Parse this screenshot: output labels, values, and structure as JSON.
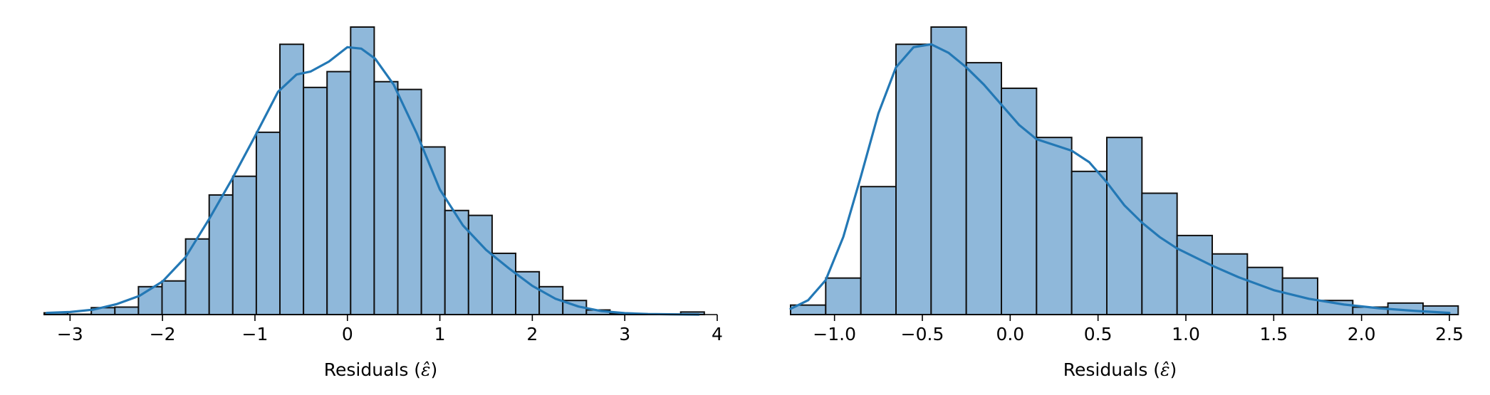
{
  "chart_data": [
    {
      "type": "histogram",
      "xlabel": "Residuals ($\\hat{\\varepsilon}$)",
      "xlabel_text": "Residuals (",
      "xlabel_symbol": "ε̂",
      "xlabel_close": ")",
      "xlim": [
        -3.28,
        4.0
      ],
      "ylim": [
        0,
        1.0
      ],
      "y_axis_visible": false,
      "grid": false,
      "bar_color": "#8fb8da",
      "bar_edge_color": "#111111",
      "kde_color": "#2378b5",
      "xticks": [
        -3,
        -2,
        -1,
        0,
        1,
        2,
        3,
        4
      ],
      "xtick_labels": [
        "−3",
        "−2",
        "−1",
        "0",
        "1",
        "2",
        "3",
        "4"
      ],
      "bins": [
        {
          "x0": -3.28,
          "x1": -3.025,
          "h": 0.006
        },
        {
          "x0": -3.025,
          "x1": -2.77,
          "h": 0.001
        },
        {
          "x0": -2.77,
          "x1": -2.515,
          "h": 0.024
        },
        {
          "x0": -2.515,
          "x1": -2.26,
          "h": 0.026
        },
        {
          "x0": -2.26,
          "x1": -2.005,
          "h": 0.097
        },
        {
          "x0": -2.005,
          "x1": -1.75,
          "h": 0.117
        },
        {
          "x0": -1.75,
          "x1": -1.495,
          "h": 0.263
        },
        {
          "x0": -1.495,
          "x1": -1.24,
          "h": 0.416
        },
        {
          "x0": -1.24,
          "x1": -0.985,
          "h": 0.481
        },
        {
          "x0": -0.985,
          "x1": -0.73,
          "h": 0.634
        },
        {
          "x0": -0.73,
          "x1": -0.475,
          "h": 0.94
        },
        {
          "x0": -0.475,
          "x1": -0.22,
          "h": 0.79
        },
        {
          "x0": -0.22,
          "x1": 0.035,
          "h": 0.845
        },
        {
          "x0": 0.035,
          "x1": 0.29,
          "h": 1.0
        },
        {
          "x0": 0.29,
          "x1": 0.545,
          "h": 0.81
        },
        {
          "x0": 0.545,
          "x1": 0.8,
          "h": 0.783
        },
        {
          "x0": 0.8,
          "x1": 1.055,
          "h": 0.583
        },
        {
          "x0": 1.055,
          "x1": 1.31,
          "h": 0.362
        },
        {
          "x0": 1.31,
          "x1": 1.565,
          "h": 0.345
        },
        {
          "x0": 1.565,
          "x1": 1.82,
          "h": 0.213
        },
        {
          "x0": 1.82,
          "x1": 2.075,
          "h": 0.149
        },
        {
          "x0": 2.075,
          "x1": 2.33,
          "h": 0.097
        },
        {
          "x0": 2.33,
          "x1": 2.585,
          "h": 0.049
        },
        {
          "x0": 2.585,
          "x1": 2.84,
          "h": 0.016
        },
        {
          "x0": 2.84,
          "x1": 3.095,
          "h": 0.005
        },
        {
          "x0": 3.095,
          "x1": 3.35,
          "h": 0.002
        },
        {
          "x0": 3.35,
          "x1": 3.605,
          "h": 0.001
        },
        {
          "x0": 3.605,
          "x1": 3.86,
          "h": 0.009
        }
      ],
      "kde": {
        "x": [
          -3.25,
          -3.0,
          -2.75,
          -2.5,
          -2.25,
          -2.0,
          -1.75,
          -1.5,
          -1.25,
          -1.0,
          -0.75,
          -0.55,
          -0.4,
          -0.2,
          0.0,
          0.15,
          0.3,
          0.5,
          0.75,
          1.0,
          1.25,
          1.5,
          1.75,
          2.0,
          2.25,
          2.5,
          2.75,
          3.0,
          3.25,
          3.5,
          3.8
        ],
        "y": [
          0.006,
          0.009,
          0.017,
          0.036,
          0.065,
          0.115,
          0.2,
          0.33,
          0.47,
          0.62,
          0.775,
          0.835,
          0.845,
          0.88,
          0.93,
          0.925,
          0.89,
          0.8,
          0.63,
          0.435,
          0.31,
          0.225,
          0.16,
          0.1,
          0.055,
          0.028,
          0.012,
          0.005,
          0.002,
          0.001,
          0.0
        ]
      }
    },
    {
      "type": "histogram",
      "xlabel": "Residuals ($\\hat{\\varepsilon}$)",
      "xlabel_text": "Residuals (",
      "xlabel_symbol": "ε̂",
      "xlabel_close": ")",
      "xlim": [
        -1.25,
        2.5
      ],
      "ylim": [
        0,
        1.0
      ],
      "y_axis_visible": false,
      "grid": false,
      "bar_color": "#8fb8da",
      "bar_edge_color": "#111111",
      "kde_color": "#2378b5",
      "xticks": [
        -1.0,
        -0.5,
        0.0,
        0.5,
        1.0,
        1.5,
        2.0,
        2.5
      ],
      "xtick_labels": [
        "−1.0",
        "−0.5",
        "0.0",
        "0.5",
        "1.0",
        "1.5",
        "2.0",
        "2.5"
      ],
      "bins": [
        {
          "x0": -1.25,
          "x1": -1.05,
          "h": 0.033
        },
        {
          "x0": -1.05,
          "x1": -0.85,
          "h": 0.127
        },
        {
          "x0": -0.85,
          "x1": -0.65,
          "h": 0.445
        },
        {
          "x0": -0.65,
          "x1": -0.45,
          "h": 0.94
        },
        {
          "x0": -0.45,
          "x1": -0.25,
          "h": 1.0
        },
        {
          "x0": -0.25,
          "x1": -0.05,
          "h": 0.876
        },
        {
          "x0": -0.05,
          "x1": 0.15,
          "h": 0.787
        },
        {
          "x0": 0.15,
          "x1": 0.35,
          "h": 0.616
        },
        {
          "x0": 0.35,
          "x1": 0.55,
          "h": 0.498
        },
        {
          "x0": 0.55,
          "x1": 0.75,
          "h": 0.616
        },
        {
          "x0": 0.75,
          "x1": 0.95,
          "h": 0.422
        },
        {
          "x0": 0.95,
          "x1": 1.15,
          "h": 0.275
        },
        {
          "x0": 1.15,
          "x1": 1.35,
          "h": 0.211
        },
        {
          "x0": 1.35,
          "x1": 1.55,
          "h": 0.164
        },
        {
          "x0": 1.55,
          "x1": 1.75,
          "h": 0.127
        },
        {
          "x0": 1.75,
          "x1": 1.95,
          "h": 0.049
        },
        {
          "x0": 1.95,
          "x1": 2.15,
          "h": 0.026
        },
        {
          "x0": 2.15,
          "x1": 2.35,
          "h": 0.04
        },
        {
          "x0": 2.35,
          "x1": 2.55,
          "h": 0.03
        }
      ],
      "kde": {
        "x": [
          -1.25,
          -1.15,
          -1.05,
          -0.95,
          -0.85,
          -0.75,
          -0.65,
          -0.55,
          -0.45,
          -0.35,
          -0.25,
          -0.15,
          -0.05,
          0.05,
          0.15,
          0.25,
          0.35,
          0.45,
          0.55,
          0.65,
          0.75,
          0.85,
          0.95,
          1.05,
          1.15,
          1.3,
          1.5,
          1.7,
          1.9,
          2.1,
          2.3,
          2.5
        ],
        "y": [
          0.02,
          0.05,
          0.12,
          0.27,
          0.48,
          0.7,
          0.86,
          0.93,
          0.94,
          0.91,
          0.86,
          0.8,
          0.73,
          0.66,
          0.61,
          0.59,
          0.57,
          0.53,
          0.46,
          0.38,
          0.32,
          0.27,
          0.23,
          0.2,
          0.17,
          0.13,
          0.085,
          0.055,
          0.035,
          0.022,
          0.013,
          0.006
        ]
      }
    }
  ]
}
